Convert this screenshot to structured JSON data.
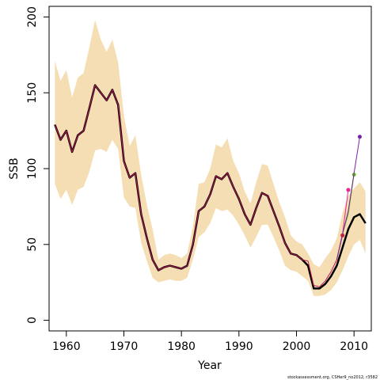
{
  "chart_data": {
    "type": "line",
    "title": "",
    "xlabel": "Year",
    "ylabel": "SSB",
    "xlim": [
      1957,
      2013
    ],
    "ylim": [
      -7,
      207
    ],
    "xticks": [
      1960,
      1970,
      1980,
      1990,
      2000,
      2010
    ],
    "yticks": [
      0,
      50,
      100,
      150,
      200
    ],
    "grid": false,
    "legend": "none",
    "band_color": "#f5deb3",
    "main_color": "#000000",
    "retro_color": "#c2185b",
    "footnote": "stockassessment.org, CSHer9_no2012, r3582",
    "x": [
      1958,
      1959,
      1960,
      1961,
      1962,
      1963,
      1964,
      1965,
      1966,
      1967,
      1968,
      1969,
      1970,
      1971,
      1972,
      1973,
      1974,
      1975,
      1976,
      1977,
      1978,
      1979,
      1980,
      1981,
      1982,
      1983,
      1984,
      1985,
      1986,
      1987,
      1988,
      1989,
      1990,
      1991,
      1992,
      1993,
      1994,
      1995,
      1996,
      1997,
      1998,
      1999,
      2000,
      2001,
      2002,
      2003,
      2004,
      2005,
      2006,
      2007,
      2008,
      2009,
      2010,
      2011,
      2012
    ],
    "series": [
      {
        "values": [
          129,
          119,
          125,
          111,
          122,
          125,
          140,
          155,
          150,
          145,
          152,
          142,
          105,
          94,
          97,
          70,
          54,
          40,
          33,
          35,
          36,
          35,
          34,
          36,
          50,
          72,
          75,
          83,
          95,
          93,
          97,
          88,
          80,
          70,
          63,
          74,
          84,
          82,
          72,
          62,
          51,
          44,
          43,
          40,
          36,
          21,
          21,
          24,
          29,
          36,
          48,
          60,
          68,
          70,
          64
        ]
      },
      {
        "values": [
          129,
          119,
          125,
          111,
          122,
          125,
          140,
          155,
          150,
          145,
          152,
          142,
          105,
          94,
          97,
          70,
          54,
          40,
          33,
          35,
          36,
          35,
          34,
          36,
          50,
          72,
          75,
          83,
          95,
          93,
          97,
          88,
          80,
          70,
          63,
          74,
          84,
          82,
          72,
          62,
          51,
          44,
          43,
          40,
          39,
          23,
          22,
          26,
          32,
          40,
          null,
          null,
          null,
          null,
          null
        ]
      }
    ],
    "confidence_band": {
      "upper": [
        171,
        158,
        165,
        147,
        160,
        163,
        180,
        198,
        185,
        177,
        185,
        170,
        135,
        115,
        122,
        96,
        76,
        60,
        40,
        43,
        44,
        43,
        41,
        44,
        62,
        90,
        91,
        100,
        116,
        114,
        120,
        105,
        97,
        85,
        77,
        91,
        103,
        102,
        90,
        78,
        68,
        56,
        52,
        50,
        44,
        37,
        35,
        41,
        46,
        54,
        71,
        82,
        87,
        91,
        85
      ],
      "lower": [
        90,
        80,
        86,
        76,
        86,
        88,
        98,
        112,
        113,
        111,
        119,
        113,
        81,
        75,
        74,
        51,
        39,
        28,
        25,
        26,
        27,
        26,
        26,
        28,
        40,
        55,
        58,
        64,
        74,
        72,
        73,
        69,
        63,
        56,
        48,
        55,
        63,
        63,
        55,
        46,
        36,
        33,
        32,
        29,
        26,
        16,
        16,
        17,
        20,
        25,
        33,
        42,
        50,
        53,
        44
      ]
    },
    "retrospective_peels": [
      {
        "color": "#e31a1c",
        "x": [
          2007,
          2008
        ],
        "values": [
          40,
          56
        ]
      },
      {
        "color": "#e7298a",
        "x": [
          2007,
          2008,
          2009
        ],
        "values": [
          40,
          57,
          86
        ]
      },
      {
        "color": "#66c21a",
        "x": [
          2007,
          2008,
          2009,
          2010
        ],
        "values": [
          40,
          57,
          70,
          96
        ]
      },
      {
        "color": "#7b1fa2",
        "x": [
          2007,
          2008,
          2009,
          2010,
          2011
        ],
        "values": [
          40,
          57,
          72,
          97,
          121
        ]
      }
    ]
  }
}
